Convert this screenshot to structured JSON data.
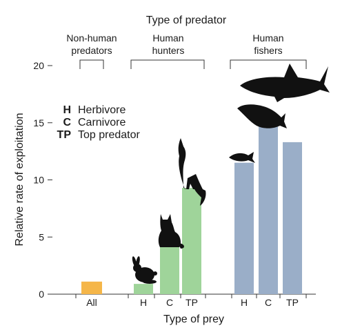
{
  "chart_data": {
    "type": "bar",
    "title": "Type of predator",
    "xlabel": "Type of prey",
    "ylabel": "Relative rate of exploitation",
    "ylim": [
      0,
      20
    ],
    "yticks": [
      0,
      5,
      10,
      15,
      20
    ],
    "grid": false,
    "groups": [
      {
        "label": "Non-human\npredators",
        "lines": [
          "Non-human",
          "predators"
        ]
      },
      {
        "label": "Human\nhunters",
        "lines": [
          "Human",
          "hunters"
        ]
      },
      {
        "label": "Human\nfishers",
        "lines": [
          "Human",
          "fishers"
        ]
      }
    ],
    "bars": [
      {
        "group": 0,
        "category": "All",
        "value": 1.1,
        "color": "#f5b649"
      },
      {
        "group": 1,
        "category": "H",
        "value": 0.9,
        "color": "#9fd49a"
      },
      {
        "group": 1,
        "category": "C",
        "value": 4.2,
        "color": "#9fd49a"
      },
      {
        "group": 1,
        "category": "TP",
        "value": 9.3,
        "color": "#9fd49a"
      },
      {
        "group": 2,
        "category": "H",
        "value": 11.5,
        "color": "#9aaec8"
      },
      {
        "group": 2,
        "category": "C",
        "value": 15.0,
        "color": "#9aaec8"
      },
      {
        "group": 2,
        "category": "TP",
        "value": 13.3,
        "color": "#9aaec8"
      }
    ],
    "legend": {
      "placement": "top-left",
      "entries": [
        {
          "abbr": "H",
          "label": "Herbivore"
        },
        {
          "abbr": "C",
          "label": "Carnivore"
        },
        {
          "abbr": "TP",
          "label": "Top predator"
        }
      ]
    },
    "silhouettes": [
      "rabbit-icon",
      "cat-icon",
      "wolf-icon",
      "fish-icon",
      "grouper-icon",
      "shark-icon"
    ]
  }
}
